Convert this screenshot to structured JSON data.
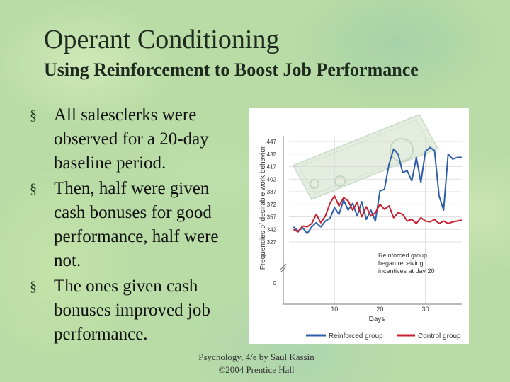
{
  "slide": {
    "title": "Operant Conditioning",
    "subtitle": "Using Reinforcement to Boost Job Performance",
    "bullets": [
      "All salesclerks were observed for a 20-day baseline period.",
      "Then, half were given cash bonuses for good performance, half were not.",
      "The ones given cash bonuses improved job performance."
    ],
    "footer_line1": "Psychology, 4/e by Saul Kassin",
    "footer_line2": "©2004 Prentice Hall"
  },
  "colors": {
    "reinforced": "#2e5fa8",
    "control": "#c8202f",
    "background": "#b9dca6"
  },
  "chart_data": {
    "type": "line",
    "ylabel": "Frequencies of desirable work behavior",
    "xlabel": "Days",
    "yticks": [
      0,
      327,
      342,
      357,
      372,
      387,
      402,
      417,
      432,
      447
    ],
    "xticks": [
      10,
      20,
      30
    ],
    "xlim": [
      0,
      38
    ],
    "ylim": [
      327,
      447
    ],
    "axis_break": true,
    "annotation": "Reinforced group began receiving incentives at day 20",
    "legend_position": "bottom",
    "series": [
      {
        "name": "Reinforced group",
        "x": [
          1,
          2,
          3,
          4,
          5,
          6,
          7,
          8,
          9,
          10,
          11,
          12,
          13,
          14,
          15,
          16,
          17,
          18,
          19,
          20,
          21,
          22,
          23,
          24,
          25,
          26,
          27,
          28,
          29,
          30,
          31,
          32,
          33,
          34,
          35,
          36,
          37,
          38
        ],
        "y": [
          345,
          340,
          344,
          337,
          345,
          350,
          345,
          352,
          355,
          368,
          360,
          377,
          365,
          373,
          358,
          375,
          354,
          365,
          352,
          388,
          390,
          420,
          438,
          432,
          410,
          412,
          400,
          428,
          398,
          435,
          440,
          436,
          382,
          365,
          432,
          426,
          428,
          428
        ]
      },
      {
        "name": "Control group",
        "x": [
          1,
          2,
          3,
          4,
          5,
          6,
          7,
          8,
          9,
          10,
          11,
          12,
          13,
          14,
          15,
          16,
          17,
          18,
          19,
          20,
          21,
          22,
          23,
          24,
          25,
          26,
          27,
          28,
          29,
          30,
          31,
          32,
          33,
          34,
          35,
          36,
          37,
          38
        ],
        "y": [
          342,
          339,
          346,
          345,
          349,
          360,
          350,
          358,
          373,
          382,
          370,
          380,
          376,
          365,
          374,
          357,
          369,
          358,
          362,
          372,
          366,
          370,
          356,
          362,
          360,
          352,
          354,
          349,
          356,
          352,
          351,
          354,
          349,
          352,
          349,
          351,
          352,
          353
        ]
      }
    ]
  }
}
